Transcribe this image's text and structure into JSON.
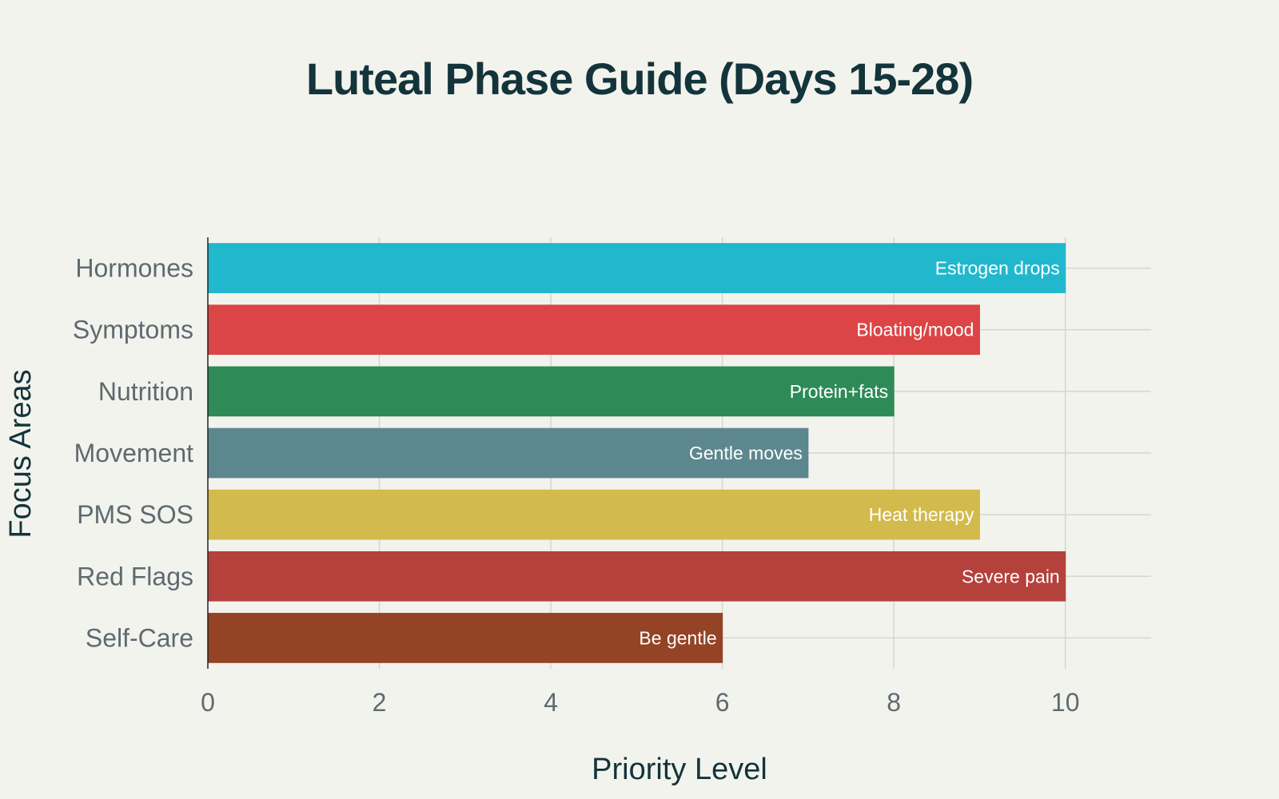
{
  "chart_data": {
    "type": "bar",
    "orientation": "horizontal",
    "title": "Luteal Phase Guide (Days 15-28)",
    "xlabel": "Priority Level",
    "ylabel": "Focus Areas",
    "xlim": [
      0,
      11
    ],
    "xticks": [
      0,
      2,
      4,
      6,
      8,
      10
    ],
    "grid": true,
    "legend": "none",
    "categories": [
      "Hormones",
      "Symptoms",
      "Nutrition",
      "Movement",
      "PMS SOS",
      "Red Flags",
      "Self-Care"
    ],
    "values": [
      10,
      9,
      8,
      7,
      9,
      10,
      6
    ],
    "labels": [
      "Estrogen drops",
      "Bloating/mood",
      "Protein+fats",
      "Gentle moves",
      "Heat therapy",
      "Severe pain",
      "Be gentle"
    ],
    "colors": [
      "#21b7cd",
      "#db4545",
      "#2e8b57",
      "#5d878f",
      "#d2ba4c",
      "#b4413c",
      "#944325"
    ]
  }
}
